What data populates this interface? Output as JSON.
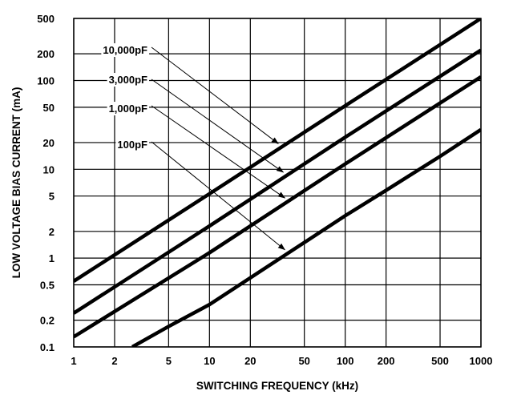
{
  "chart_data": {
    "type": "line",
    "xlabel": "SWITCHING FREQUENCY (kHz)",
    "ylabel": "LOW VOLTAGE BIAS CURRENT (mA)",
    "xscale": "log",
    "yscale": "log",
    "xlim": [
      1,
      1000
    ],
    "ylim": [
      0.1,
      500
    ],
    "grid": true,
    "x_ticks": [
      1,
      2,
      5,
      10,
      20,
      50,
      100,
      200,
      500,
      1000
    ],
    "x_tick_labels": [
      "1",
      "2",
      "5",
      "10",
      "20",
      "50",
      "100",
      "200",
      "500",
      "1000"
    ],
    "y_ticks": [
      0.1,
      0.2,
      0.5,
      1,
      2,
      5,
      10,
      20,
      50,
      100,
      200,
      500
    ],
    "y_tick_labels": [
      "0.1",
      "0.2",
      "0.5",
      "1",
      "2",
      "5",
      "10",
      "20",
      "50",
      "100",
      "200",
      "500"
    ],
    "series": [
      {
        "name": "10,000pF",
        "x": [
          1,
          10,
          100,
          1000
        ],
        "y": [
          0.55,
          5.3,
          52,
          500
        ]
      },
      {
        "name": "3,000pF",
        "x": [
          1,
          10,
          100,
          1000
        ],
        "y": [
          0.24,
          2.3,
          23,
          220
        ]
      },
      {
        "name": "1,000pF",
        "x": [
          1,
          10,
          100,
          1000
        ],
        "y": [
          0.13,
          1.15,
          11.5,
          110
        ]
      },
      {
        "name": "100pF",
        "x": [
          2.7,
          5,
          10,
          20,
          50,
          100,
          200,
          500,
          1000
        ],
        "y": [
          0.1,
          0.17,
          0.3,
          0.6,
          1.5,
          3.0,
          5.8,
          14,
          28
        ]
      }
    ],
    "annotations": [
      {
        "text": "10,000pF",
        "series": 0
      },
      {
        "text": "3,000pF",
        "series": 1
      },
      {
        "text": "1,000pF",
        "series": 2
      },
      {
        "text": "100pF",
        "series": 3
      }
    ]
  }
}
